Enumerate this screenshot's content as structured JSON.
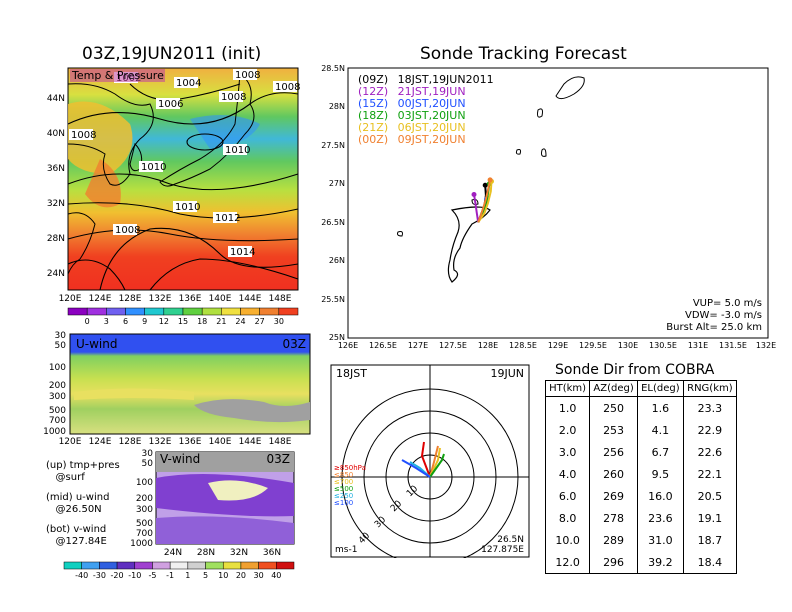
{
  "left_panels": {
    "title": "03Z,19JUN2011 (init)",
    "map_label": "Temp & Pressure",
    "lat_labels": [
      "44N",
      "40N",
      "36N",
      "32N",
      "28N",
      "24N"
    ],
    "lon_labels": [
      "120E",
      "124E",
      "128E",
      "132E",
      "136E",
      "140E",
      "144E",
      "148E"
    ],
    "isobar_labels": [
      "1002",
      "1004",
      "1008",
      "1006",
      "1008",
      "1008",
      "1008",
      "1010",
      "1010",
      "1010",
      "1012",
      "1008",
      "1014"
    ],
    "temp_colorbar": {
      "ticks": [
        "0",
        "3",
        "6",
        "9",
        "12",
        "15",
        "18",
        "21",
        "24",
        "27",
        "30"
      ],
      "colors": [
        "#8b00c0",
        "#a030e0",
        "#7060f0",
        "#3090ff",
        "#20c8d0",
        "#30d090",
        "#60d040",
        "#b0e040",
        "#f0e040",
        "#f8b030",
        "#f08030",
        "#f04020"
      ]
    },
    "u_wind": {
      "label": "U-wind",
      "time": "03Z",
      "y_ticks": [
        "30",
        "50",
        "100",
        "200",
        "300",
        "500",
        "700",
        "1000"
      ],
      "x_ticks": [
        "120E",
        "124E",
        "128E",
        "132E",
        "136E",
        "140E",
        "144E",
        "148E"
      ]
    },
    "v_wind": {
      "label": "V-wind",
      "time": "03Z",
      "y_ticks": [
        "30",
        "50",
        "100",
        "200",
        "300",
        "500",
        "700",
        "1000"
      ],
      "x_ticks": [
        "24N",
        "28N",
        "32N",
        "36N"
      ]
    },
    "notes": [
      {
        "line1": "(up) tmp+pres",
        "line2": "@surf"
      },
      {
        "line1": "(mid) u-wind",
        "line2": "@26.50N"
      },
      {
        "line1": "(bot) v-wind",
        "line2": "@127.84E"
      }
    ],
    "wind_colorbar": {
      "ticks": [
        "-40",
        "-30",
        "-20",
        "-10",
        "-5",
        "-1",
        "1",
        "5",
        "10",
        "20",
        "30",
        "40"
      ],
      "colors": [
        "#10d0c0",
        "#40a0f0",
        "#3060e0",
        "#6030c0",
        "#a040d0",
        "#d0a0e0",
        "#f0f0f0",
        "#d0d0d0",
        "#a0e060",
        "#e8e040",
        "#f0a030",
        "#f05020",
        "#d01010"
      ]
    }
  },
  "tracking": {
    "title": "Sonde Tracking Forecast",
    "legend": [
      {
        "code": "(09Z)",
        "text": "18JST,19JUN2011",
        "color": "#000000"
      },
      {
        "code": "(12Z)",
        "text": "21JST,19JUN",
        "color": "#a020c0"
      },
      {
        "code": "(15Z)",
        "text": "00JST,20JUN",
        "color": "#2050ff"
      },
      {
        "code": "(18Z)",
        "text": "03JST,20JUN",
        "color": "#10a010"
      },
      {
        "code": "(21Z)",
        "text": "06JST,20JUN",
        "color": "#e8c020"
      },
      {
        "code": "(00Z)",
        "text": "09JST,20JUN",
        "color": "#f08030"
      }
    ],
    "lat_ticks": [
      "28.5N",
      "28N",
      "27.5N",
      "27N",
      "26.5N",
      "26N",
      "25.5N",
      "25N"
    ],
    "lon_ticks": [
      "126E",
      "126.5E",
      "127E",
      "127.5E",
      "128E",
      "128.5E",
      "129E",
      "129.5E",
      "130E",
      "130.5E",
      "131E",
      "131.5E",
      "132E"
    ],
    "lat_range": [
      25,
      28.5
    ],
    "lon_range": [
      126,
      132
    ],
    "params": [
      "VUP=  5.0 m/s",
      "VDW= -3.0 m/s",
      "Burst Alt=  25.0 km"
    ],
    "tracks": [
      {
        "color": "#000000",
        "pts": [
          [
            127.86,
            26.5
          ],
          [
            127.9,
            26.6
          ],
          [
            127.95,
            26.72
          ],
          [
            127.97,
            26.85
          ],
          [
            127.96,
            26.98
          ]
        ]
      },
      {
        "color": "#a020c0",
        "pts": [
          [
            127.86,
            26.5
          ],
          [
            127.84,
            26.62
          ],
          [
            127.82,
            26.75
          ],
          [
            127.8,
            26.86
          ]
        ]
      },
      {
        "color": "#2050ff",
        "pts": [
          [
            127.86,
            26.5
          ],
          [
            127.9,
            26.6
          ],
          [
            127.95,
            26.7
          ],
          [
            127.98,
            26.8
          ]
        ]
      },
      {
        "color": "#10a010",
        "pts": [
          [
            127.86,
            26.5
          ],
          [
            127.92,
            26.62
          ],
          [
            127.98,
            26.75
          ],
          [
            128.0,
            26.88
          ],
          [
            128.02,
            27.0
          ]
        ]
      },
      {
        "color": "#e8c020",
        "pts": [
          [
            127.86,
            26.5
          ],
          [
            127.95,
            26.62
          ],
          [
            128.0,
            26.75
          ],
          [
            128.04,
            26.9
          ],
          [
            128.05,
            27.03
          ]
        ]
      },
      {
        "color": "#f08030",
        "pts": [
          [
            127.86,
            26.5
          ],
          [
            127.92,
            26.65
          ],
          [
            127.97,
            26.8
          ],
          [
            128.0,
            26.92
          ],
          [
            128.03,
            27.05
          ]
        ]
      }
    ]
  },
  "polar": {
    "left_label": "18JST",
    "right_label": "19JUN",
    "ring_labels": [
      "10",
      "20",
      "30",
      "40"
    ],
    "height_legend": [
      {
        "text": "≥850hPa",
        "color": "#e00000"
      },
      {
        "text": "≤850",
        "color": "#f08030"
      },
      {
        "text": "≤700",
        "color": "#e8c020"
      },
      {
        "text": "≤500",
        "color": "#10a010"
      },
      {
        "text": "≤250",
        "color": "#20b0e0"
      },
      {
        "text": "≤100",
        "color": "#2050ff"
      }
    ],
    "unit": "ms-1",
    "loc_lat": "26.5N",
    "loc_lon": "127.875E"
  },
  "cobra": {
    "title": "Sonde Dir from COBRA",
    "headers": [
      "HT(km)",
      "AZ(deg)",
      "EL(deg)",
      "RNG(km)"
    ],
    "rows": [
      [
        "1.0",
        "250",
        "1.6",
        "23.3"
      ],
      [
        "2.0",
        "253",
        "4.1",
        "22.9"
      ],
      [
        "3.0",
        "256",
        "6.7",
        "22.6"
      ],
      [
        "4.0",
        "260",
        "9.5",
        "22.1"
      ],
      [
        "6.0",
        "269",
        "16.0",
        "20.5"
      ],
      [
        "8.0",
        "278",
        "23.6",
        "19.1"
      ],
      [
        "10.0",
        "289",
        "31.0",
        "18.7"
      ],
      [
        "12.0",
        "296",
        "39.2",
        "18.4"
      ]
    ]
  }
}
